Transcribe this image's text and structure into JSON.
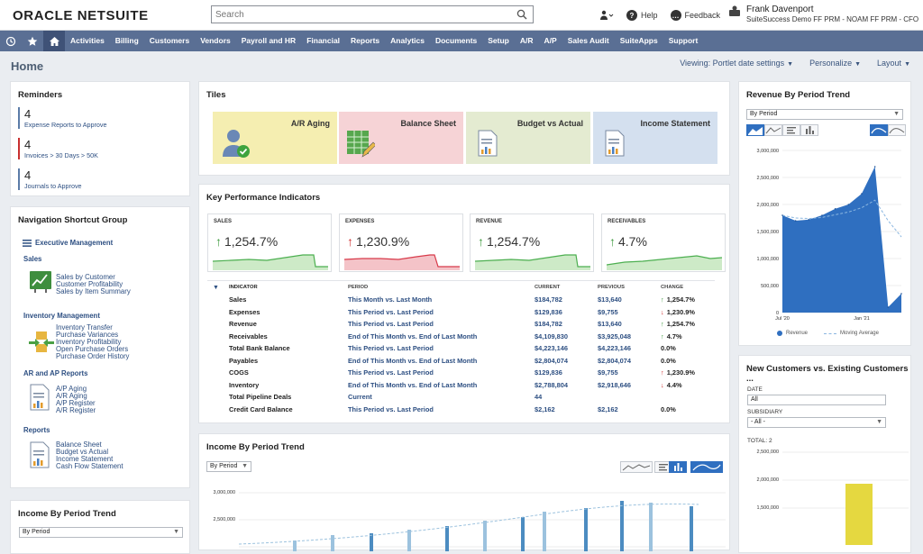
{
  "brand": {
    "part1": "ORACLE",
    "part2": "NETSUITE"
  },
  "search": {
    "placeholder": "Search"
  },
  "top": {
    "help": "Help",
    "feedback": "Feedback",
    "user_name": "Frank Davenport",
    "user_role": "SuiteSuccess Demo FF PRM - NOAM FF PRM - CFO"
  },
  "nav": {
    "items": [
      "Activities",
      "Billing",
      "Customers",
      "Vendors",
      "Payroll and HR",
      "Financial",
      "Reports",
      "Analytics",
      "Documents",
      "Setup",
      "A/R",
      "A/P",
      "Sales Audit",
      "SuiteApps",
      "Support"
    ]
  },
  "page": {
    "title": "Home",
    "viewing": "Viewing: Portlet date settings",
    "personalize": "Personalize",
    "layout": "Layout"
  },
  "reminders": {
    "title": "Reminders",
    "items": [
      {
        "count": "4",
        "label": "Expense Reports to Approve",
        "color": "#5b7ca8"
      },
      {
        "count": "4",
        "label": "Invoices > 30 Days > 50K",
        "color": "#c83030"
      },
      {
        "count": "4",
        "label": "Journals to Approve",
        "color": "#5b7ca8"
      }
    ]
  },
  "shortcuts": {
    "title": "Navigation Shortcut Group",
    "group": "Executive Management",
    "sales": {
      "title": "Sales",
      "links": [
        "Sales by Customer",
        "Customer Profitability",
        "Sales by Item Summary"
      ]
    },
    "inventory": {
      "title": "Inventory Management",
      "links": [
        "Inventory Transfer",
        "Purchase Variances",
        "Inventory Profitability",
        "Open Purchase Orders",
        "Purchase Order History"
      ]
    },
    "arap": {
      "title": "AR and AP Reports",
      "links": [
        "A/P Aging",
        "A/R Aging",
        "A/P Register",
        "A/R Register"
      ]
    },
    "reports": {
      "title": "Reports",
      "links": [
        "Balance Sheet",
        "Budget vs Actual",
        "Income Statement",
        "Cash Flow Statement"
      ]
    }
  },
  "income_left": {
    "title": "Income By Period Trend",
    "select": "By Period"
  },
  "tiles": {
    "title": "Tiles",
    "items": [
      {
        "label": "A/R Aging",
        "bg": "#f5eeb1"
      },
      {
        "label": "Balance Sheet",
        "bg": "#f6d3d6"
      },
      {
        "label": "Budget vs Actual",
        "bg": "#e4ebd1"
      },
      {
        "label": "Income Statement",
        "bg": "#d4e0ef"
      }
    ]
  },
  "kpi": {
    "title": "Key Performance Indicators",
    "boxes": [
      {
        "label": "SALES",
        "value": "1,254.7%",
        "dir": "up"
      },
      {
        "label": "EXPENSES",
        "value": "1,230.9%",
        "dir": "down"
      },
      {
        "label": "REVENUE",
        "value": "1,254.7%",
        "dir": "up"
      },
      {
        "label": "RECEIVABLES",
        "value": "4.7%",
        "dir": "up"
      }
    ],
    "headers": [
      "INDICATOR",
      "PERIOD",
      "CURRENT",
      "PREVIOUS",
      "CHANGE"
    ],
    "rows": [
      {
        "indicator": "Sales",
        "period": "This Month vs. Last Month",
        "current": "$184,782",
        "previous": "$13,640",
        "change": "1,254.7%",
        "dir": "up"
      },
      {
        "indicator": "Expenses",
        "period": "This Period vs. Last Period",
        "current": "$129,836",
        "previous": "$9,755",
        "change": "1,230.9%",
        "dir": "down"
      },
      {
        "indicator": "Revenue",
        "period": "This Period vs. Last Period",
        "current": "$184,782",
        "previous": "$13,640",
        "change": "1,254.7%",
        "dir": "up"
      },
      {
        "indicator": "Receivables",
        "period": "End of This Month vs. End of Last Month",
        "current": "$4,109,830",
        "previous": "$3,925,048",
        "change": "4.7%",
        "dir": "up"
      },
      {
        "indicator": "Total Bank Balance",
        "period": "This Period vs. Last Period",
        "current": "$4,223,146",
        "previous": "$4,223,146",
        "change": "0.0%",
        "dir": ""
      },
      {
        "indicator": "Payables",
        "period": "End of This Month vs. End of Last Month",
        "current": "$2,804,074",
        "previous": "$2,804,074",
        "change": "0.0%",
        "dir": ""
      },
      {
        "indicator": "COGS",
        "period": "This Period vs. Last Period",
        "current": "$129,836",
        "previous": "$9,755",
        "change": "1,230.9%",
        "dir": "up-red"
      },
      {
        "indicator": "Inventory",
        "period": "End of This Month vs. End of Last Month",
        "current": "$2,788,804",
        "previous": "$2,918,646",
        "change": "4.4%",
        "dir": "down"
      },
      {
        "indicator": "Total Pipeline Deals",
        "period": "Current",
        "current": "44",
        "previous": "",
        "change": "",
        "dir": ""
      },
      {
        "indicator": "Credit Card Balance",
        "period": "This Period vs. Last Period",
        "current": "$2,162",
        "previous": "$2,162",
        "change": "0.0%",
        "dir": ""
      }
    ]
  },
  "income_mid": {
    "title": "Income By Period Trend",
    "select": "By Period",
    "yticks": [
      "3,000,000",
      "2,500,000"
    ]
  },
  "revenue": {
    "title": "Revenue By Period Trend",
    "select": "By Period",
    "yticks": [
      "3,000,000",
      "2,500,000",
      "2,000,000",
      "1,500,000",
      "1,000,000",
      "500,000",
      "0"
    ],
    "xticks": [
      "Jul '20",
      "Jan '21"
    ],
    "legend": [
      "Revenue",
      "Moving Average"
    ]
  },
  "newcust": {
    "title": "New Customers vs. Existing Customers ...",
    "date_label": "DATE",
    "date_value": "All",
    "sub_label": "SUBSIDIARY",
    "sub_value": "- All -",
    "total": "TOTAL: 2",
    "yticks": [
      "1,500,000",
      "2,000,000",
      "2,500,000"
    ]
  },
  "chart_data": [
    {
      "type": "area",
      "title": "Revenue By Period Trend",
      "xlabel": "",
      "ylabel": "",
      "ylim": [
        0,
        3000000
      ],
      "x": [
        "Jul '20",
        "Aug '20",
        "Sep '20",
        "Oct '20",
        "Nov '20",
        "Dec '20",
        "Jan '21",
        "Feb '21",
        "Mar '21",
        "Apr '21"
      ],
      "series": [
        {
          "name": "Revenue",
          "values": [
            1800000,
            1700000,
            1720000,
            1800000,
            1920000,
            2000000,
            2200000,
            2700000,
            100000,
            350000
          ]
        },
        {
          "name": "Moving Average",
          "values": [
            1800000,
            1750000,
            1740000,
            1760000,
            1810000,
            1860000,
            1940000,
            2080000,
            1700000,
            1400000
          ]
        }
      ],
      "legend": "bottom"
    }
  ],
  "colors": {
    "nav": "#5a6f94",
    "link": "#2d4f82",
    "accent": "#2f6fc0"
  }
}
